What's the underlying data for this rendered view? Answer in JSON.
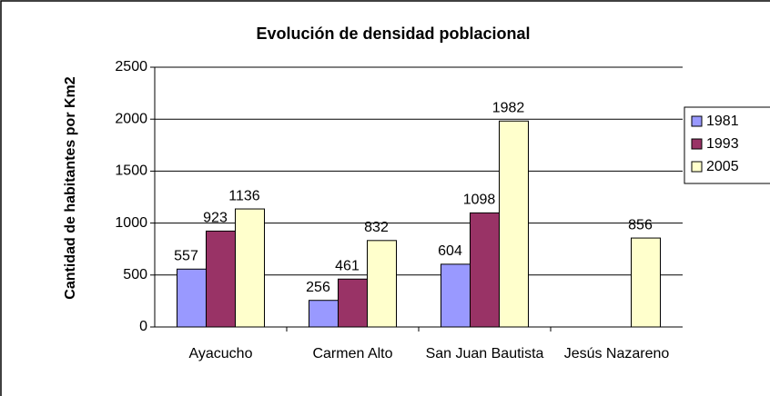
{
  "chart_data": {
    "type": "bar",
    "title": "Evolución de densidad poblacional",
    "y_label": "Cantidad de habitantes por Km2",
    "categories": [
      "Ayacucho",
      "Carmen Alto",
      "San Juan Bautista",
      "Jesús Nazareno"
    ],
    "series": [
      {
        "name": "1981",
        "color": "#9999ff",
        "values": [
          557,
          256,
          604,
          null
        ]
      },
      {
        "name": "1993",
        "color": "#993366",
        "values": [
          923,
          461,
          1098,
          null
        ]
      },
      {
        "name": "2005",
        "color": "#ffffcc",
        "values": [
          1136,
          832,
          1982,
          856
        ]
      }
    ],
    "ylim": [
      0,
      2500
    ],
    "yticks": [
      0,
      500,
      1000,
      1500,
      2000,
      2500
    ],
    "grid": true,
    "legend": "right"
  }
}
